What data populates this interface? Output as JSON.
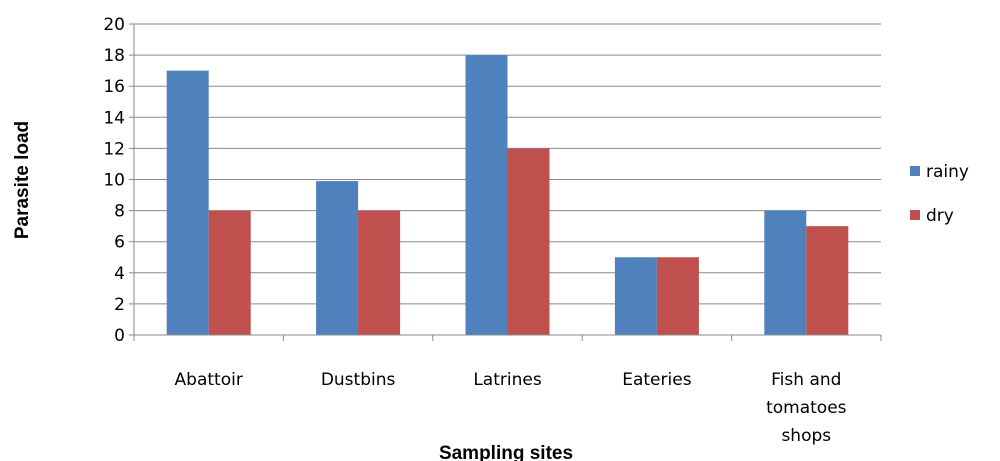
{
  "chart_data": {
    "type": "bar",
    "categories": [
      [
        "Abattoir"
      ],
      [
        "Dustbins"
      ],
      [
        "Latrines"
      ],
      [
        "Eateries"
      ],
      [
        "Fish and",
        "tomatoes",
        "shops"
      ]
    ],
    "series": [
      {
        "name": "rainy",
        "color": "#4F81BD",
        "values": [
          17,
          9.9,
          18,
          5,
          8
        ]
      },
      {
        "name": "dry",
        "color": "#C0504D",
        "values": [
          8,
          8,
          12,
          5,
          7
        ]
      }
    ],
    "title": "",
    "xlabel": "Sampling sites",
    "ylabel": "Parasite load",
    "ylim": [
      0,
      20
    ],
    "yticks": [
      "0",
      "2",
      "4",
      "6",
      "8",
      "10",
      "12",
      "14",
      "16",
      "18",
      "20"
    ],
    "grid": true,
    "legend_position": "right"
  }
}
